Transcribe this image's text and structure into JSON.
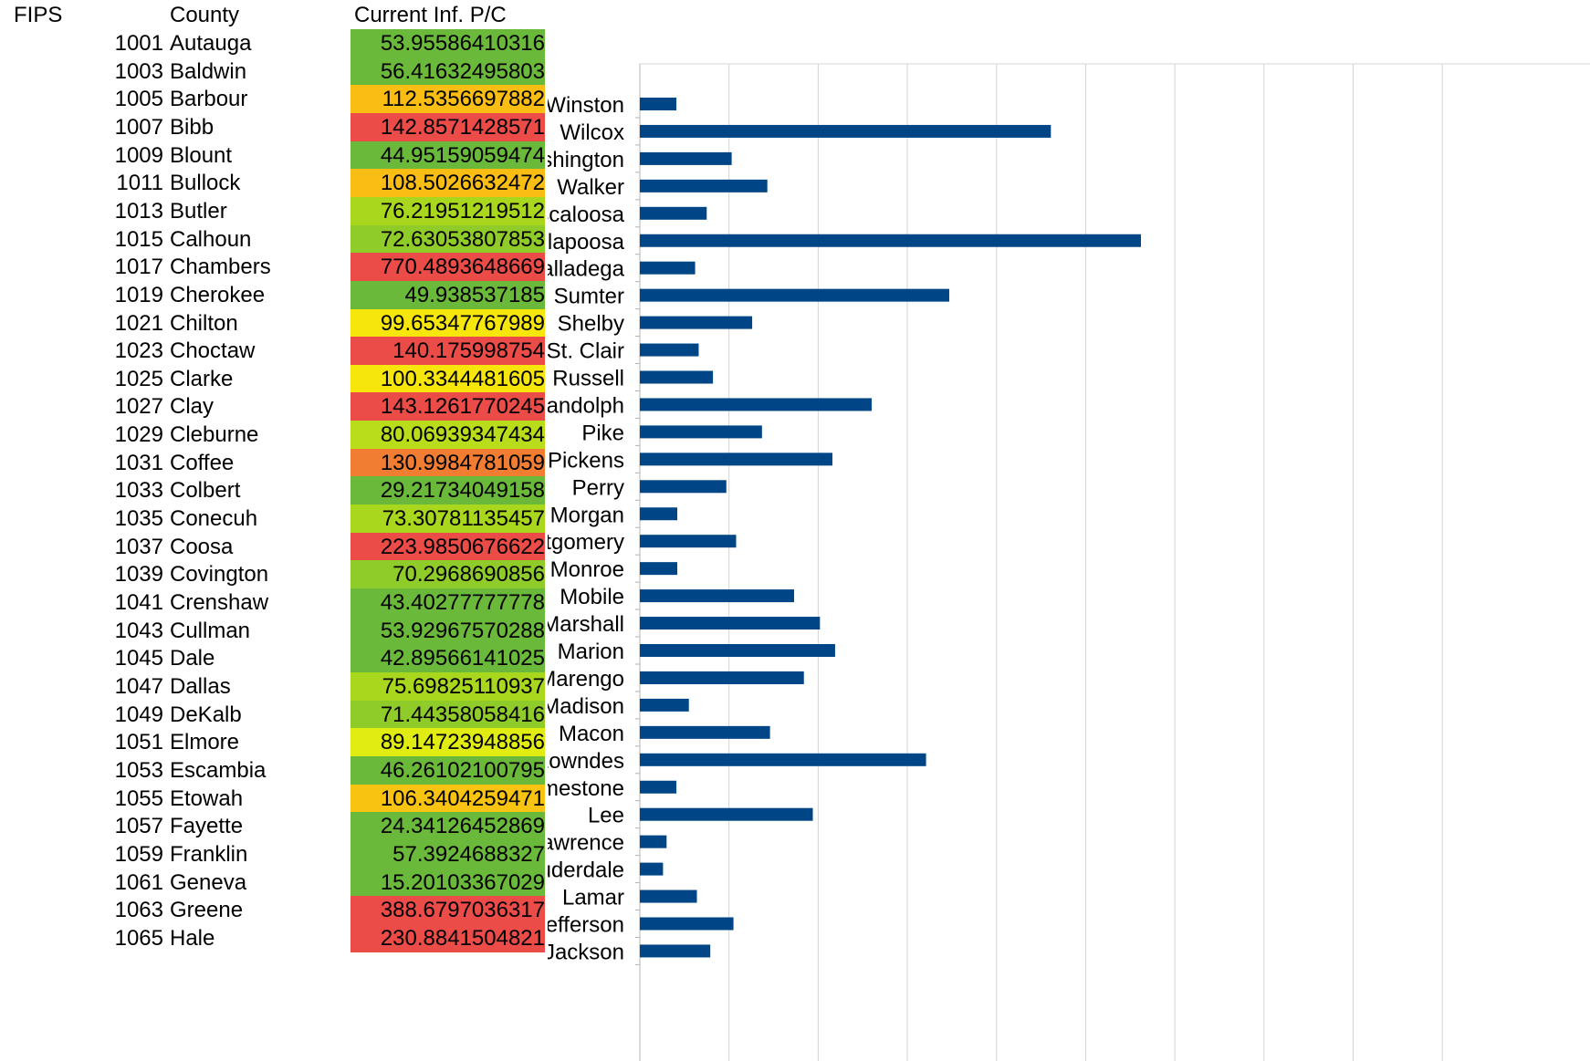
{
  "table": {
    "headers": {
      "fips": "FIPS",
      "county": "County",
      "inf": "Current Inf. P/C"
    },
    "rows": [
      {
        "fips": "1001",
        "county": "Autauga",
        "inf": "53.95586410316",
        "color": "#6ab93b"
      },
      {
        "fips": "1003",
        "county": "Baldwin",
        "inf": "56.41632495803",
        "color": "#6ab93b"
      },
      {
        "fips": "1005",
        "county": "Barbour",
        "inf": "112.5356697882",
        "color": "#f9bd13"
      },
      {
        "fips": "1007",
        "county": "Bibb",
        "inf": "142.8571428571",
        "color": "#ec4c47"
      },
      {
        "fips": "1009",
        "county": "Blount",
        "inf": "44.95159059474",
        "color": "#6ab93b"
      },
      {
        "fips": "1011",
        "county": "Bullock",
        "inf": "108.5026632472",
        "color": "#f9bd13"
      },
      {
        "fips": "1013",
        "county": "Butler",
        "inf": "76.21951219512",
        "color": "#a9d71d"
      },
      {
        "fips": "1015",
        "county": "Calhoun",
        "inf": "72.63053807853",
        "color": "#8fcc2a"
      },
      {
        "fips": "1017",
        "county": "Chambers",
        "inf": "770.4893648669",
        "color": "#ec4c47"
      },
      {
        "fips": "1019",
        "county": "Cherokee",
        "inf": "49.938537185",
        "color": "#6ab93b"
      },
      {
        "fips": "1021",
        "county": "Chilton",
        "inf": "99.65347767989",
        "color": "#f7e60c"
      },
      {
        "fips": "1023",
        "county": "Choctaw",
        "inf": "140.175998754",
        "color": "#ec4c47"
      },
      {
        "fips": "1025",
        "county": "Clarke",
        "inf": "100.3344481605",
        "color": "#f7e60c"
      },
      {
        "fips": "1027",
        "county": "Clay",
        "inf": "143.1261770245",
        "color": "#ec4c47"
      },
      {
        "fips": "1029",
        "county": "Cleburne",
        "inf": "80.06939347434",
        "color": "#b9dc1b"
      },
      {
        "fips": "1031",
        "county": "Coffee",
        "inf": "130.9984781059",
        "color": "#f07d32"
      },
      {
        "fips": "1033",
        "county": "Colbert",
        "inf": "29.21734049158",
        "color": "#6ab93b"
      },
      {
        "fips": "1035",
        "county": "Conecuh",
        "inf": "73.30781135457",
        "color": "#a9d71d"
      },
      {
        "fips": "1037",
        "county": "Coosa",
        "inf": "223.9850676622",
        "color": "#ec4c47"
      },
      {
        "fips": "1039",
        "county": "Covington",
        "inf": "70.2968690856",
        "color": "#8fcc2a"
      },
      {
        "fips": "1041",
        "county": "Crenshaw",
        "inf": "43.40277777778",
        "color": "#6ab93b"
      },
      {
        "fips": "1043",
        "county": "Cullman",
        "inf": "53.92967570288",
        "color": "#6ab93b"
      },
      {
        "fips": "1045",
        "county": "Dale",
        "inf": "42.89566141025",
        "color": "#6ab93b"
      },
      {
        "fips": "1047",
        "county": "Dallas",
        "inf": "75.69825110937",
        "color": "#a9d71d"
      },
      {
        "fips": "1049",
        "county": "DeKalb",
        "inf": "71.44358058416",
        "color": "#8fcc2a"
      },
      {
        "fips": "1051",
        "county": "Elmore",
        "inf": "89.14723948856",
        "color": "#e1ec13"
      },
      {
        "fips": "1053",
        "county": "Escambia",
        "inf": "46.26102100795",
        "color": "#6ab93b"
      },
      {
        "fips": "1055",
        "county": "Etowah",
        "inf": "106.3404259471",
        "color": "#f9c312"
      },
      {
        "fips": "1057",
        "county": "Fayette",
        "inf": "24.34126452869",
        "color": "#6ab93b"
      },
      {
        "fips": "1059",
        "county": "Franklin",
        "inf": "57.3924688327",
        "color": "#6ab93b"
      },
      {
        "fips": "1061",
        "county": "Geneva",
        "inf": "15.20103367029",
        "color": "#6ab93b"
      },
      {
        "fips": "1063",
        "county": "Greene",
        "inf": "388.6797036317",
        "color": "#ec4c47"
      },
      {
        "fips": "1065",
        "county": "Hale",
        "inf": "230.8841504821",
        "color": "#ec4c47"
      }
    ]
  },
  "chart_data": {
    "type": "bar",
    "orientation": "horizontal",
    "title": "",
    "xlabel": "",
    "ylabel": "",
    "grid": true,
    "xlim": [
      0,
      900
    ],
    "bar_color": "#004586",
    "categories": [
      "Winston",
      "Wilcox",
      "Washington",
      "Walker",
      "Tuscaloosa",
      "Tallapoosa",
      "Talladega",
      "Sumter",
      "Shelby",
      "St. Clair",
      "Russell",
      "Randolph",
      "Pike",
      "Pickens",
      "Perry",
      "Morgan",
      "Montgomery",
      "Monroe",
      "Mobile",
      "Marshall",
      "Marion",
      "Marengo",
      "Madison",
      "Macon",
      "Lowndes",
      "Limestone",
      "Lee",
      "Lawrence",
      "Lauderdale",
      "Lamar",
      "Jefferson",
      "Jackson"
    ],
    "values": [
      41,
      461,
      103,
      143,
      75,
      562,
      62,
      347,
      126,
      66,
      82,
      260,
      137,
      216,
      97,
      42,
      108,
      42,
      173,
      202,
      219,
      184,
      55,
      146,
      321,
      41,
      194,
      30,
      26,
      64,
      105,
      79
    ]
  }
}
